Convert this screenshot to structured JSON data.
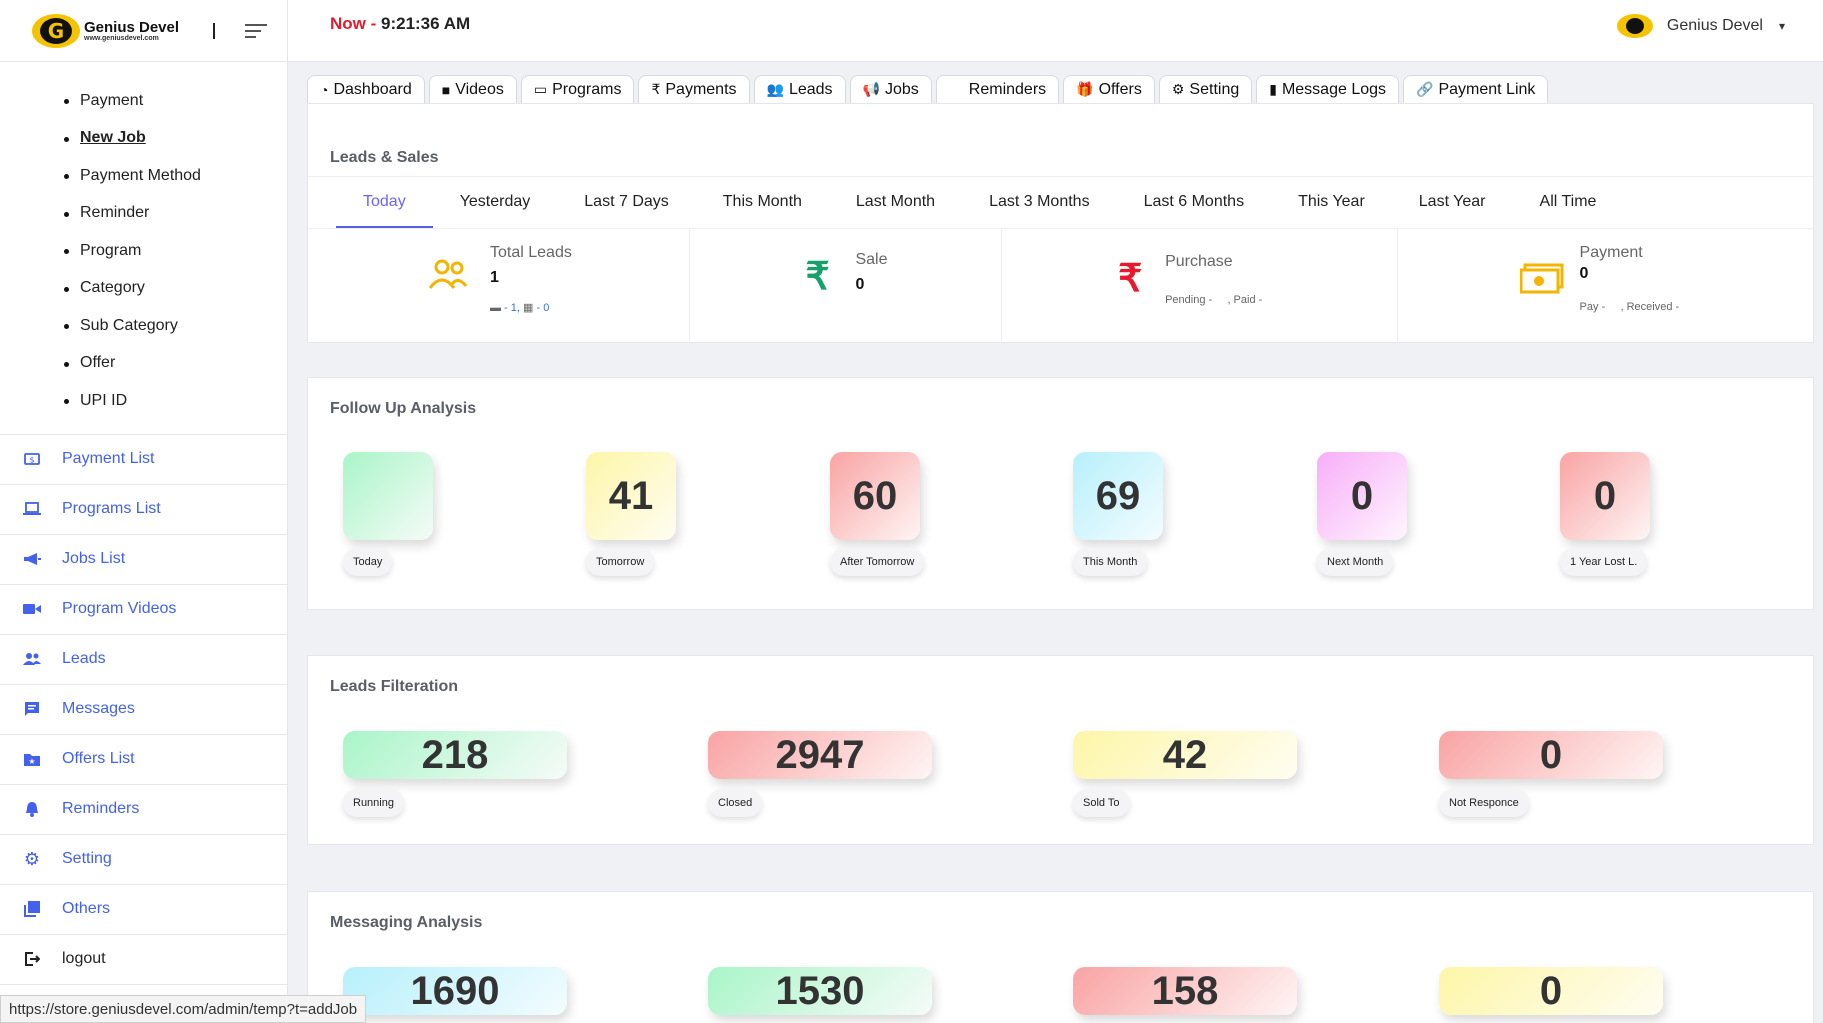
{
  "brand": {
    "name": "Genius Devel",
    "url": "www.geniusdevel.com",
    "letter": "G"
  },
  "topbar": {
    "now_label": "Now - ",
    "time": "9:21:36 AM",
    "user_name": "Genius Devel",
    "chevron": "⌄"
  },
  "submenu": [
    "Payment",
    "New Job",
    "Payment Method",
    "Reminder",
    "Program",
    "Category",
    "Sub Category",
    "Offer",
    "UPI ID"
  ],
  "nav": [
    {
      "label": "Payment List",
      "icon": "payment-list-icon"
    },
    {
      "label": "Programs List",
      "icon": "laptop-icon"
    },
    {
      "label": "Jobs List",
      "icon": "megaphone-icon"
    },
    {
      "label": "Program Videos",
      "icon": "video-camera-icon"
    },
    {
      "label": "Leads",
      "icon": "users-icon"
    },
    {
      "label": "Messages",
      "icon": "message-icon"
    },
    {
      "label": "Offers List",
      "icon": "offer-folder-icon"
    },
    {
      "label": "Reminders",
      "icon": "bell-icon"
    },
    {
      "label": "Setting",
      "icon": "gear-icon"
    },
    {
      "label": "Others",
      "icon": "copy-icon"
    },
    {
      "label": "logout",
      "icon": "logout-icon"
    }
  ],
  "tabs": [
    "Dashboard",
    "Videos",
    "Programs",
    "Payments",
    "Leads",
    "Jobs",
    "Reminders",
    "Offers",
    "Setting",
    "Message Logs",
    "Payment Link"
  ],
  "leads_sales": {
    "title": "Leads & Sales",
    "periods": [
      "Today",
      "Yesterday",
      "Last 7 Days",
      "This Month",
      "Last Month",
      "Last 3 Months",
      "Last 6 Months",
      "This Year",
      "Last Year",
      "All Time"
    ],
    "total_leads": {
      "label": "Total Leads",
      "value": "1",
      "sub_a": " - 1, ",
      "sub_b": " - 0"
    },
    "sale": {
      "label": "Sale",
      "value": "0",
      "icon": "₹"
    },
    "purchase": {
      "label": "Purchase",
      "sub": "Pending -     , Paid -",
      "icon": "₹"
    },
    "payment": {
      "label": "Payment",
      "value": "0",
      "sub": "Pay -     , Received -"
    }
  },
  "follow_up": {
    "title": "Follow Up Analysis",
    "items": [
      {
        "value": "",
        "label": "Today"
      },
      {
        "value": "41",
        "label": "Tomorrow"
      },
      {
        "value": "60",
        "label": "After Tomorrow"
      },
      {
        "value": "69",
        "label": "This Month"
      },
      {
        "value": "0",
        "label": "Next Month"
      },
      {
        "value": "0",
        "label": "1 Year Lost L."
      }
    ]
  },
  "leads_filter": {
    "title": "Leads Filteration",
    "items": [
      {
        "value": "218",
        "label": "Running"
      },
      {
        "value": "2947",
        "label": "Closed"
      },
      {
        "value": "42",
        "label": "Sold To"
      },
      {
        "value": "0",
        "label": "Not Responce"
      }
    ]
  },
  "messaging": {
    "title": "Messaging Analysis",
    "items": [
      {
        "value": "1690"
      },
      {
        "value": "1530"
      },
      {
        "value": "158"
      },
      {
        "value": "0"
      }
    ]
  },
  "status_url": "https://store.geniusdevel.com/admin/temp?t=addJob",
  "colors": {
    "accent": "#4361ee",
    "now_red": "#e8192c",
    "tab_active": "#6c63ff"
  }
}
